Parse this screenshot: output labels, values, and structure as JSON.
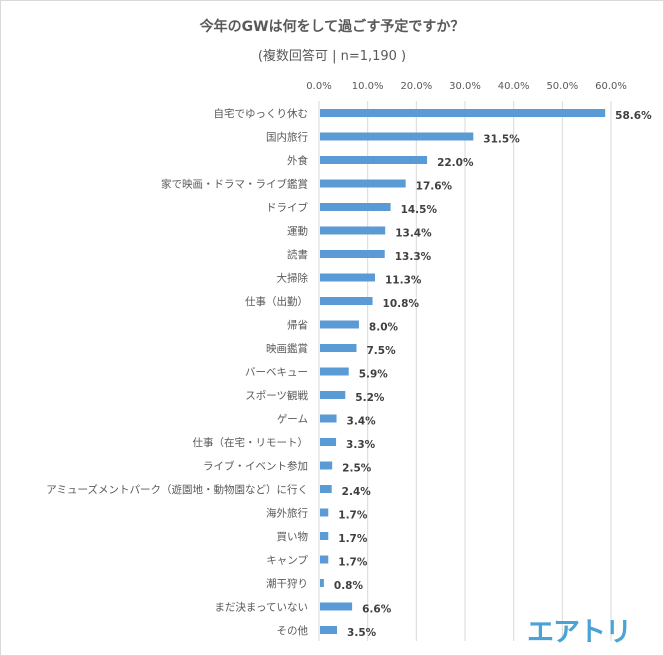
{
  "logo_text": "エアトリ",
  "chart_data": {
    "type": "bar",
    "orientation": "horizontal",
    "title": "今年のGWは何をして過ごす予定ですか？",
    "subtitle": "(複数回答可 | n=1,190 )",
    "xlabel": "",
    "ylabel": "",
    "xlim": [
      0,
      60
    ],
    "x_ticks": [
      "0.0%",
      "10.0%",
      "20.0%",
      "30.0%",
      "40.0%",
      "50.0%",
      "60.0%"
    ],
    "tick_values": [
      0,
      10,
      20,
      30,
      40,
      50,
      60
    ],
    "grid": true,
    "bar_color": "#5b9bd5",
    "categories": [
      "自宅でゆっくり休む",
      "国内旅行",
      "外食",
      "家で映画・ドラマ・ライブ鑑賞",
      "ドライブ",
      "運動",
      "読書",
      "大掃除",
      "仕事（出勤）",
      "帰省",
      "映画鑑賞",
      "バーベキュー",
      "スポーツ観戦",
      "ゲーム",
      "仕事（在宅・リモート）",
      "ライブ・イベント参加",
      "アミューズメントパーク（遊園地・動物園など）に行く",
      "海外旅行",
      "買い物",
      "キャンプ",
      "潮干狩り",
      "まだ決まっていない",
      "その他"
    ],
    "values": [
      58.6,
      31.5,
      22.0,
      17.6,
      14.5,
      13.4,
      13.3,
      11.3,
      10.8,
      8.0,
      7.5,
      5.9,
      5.2,
      3.4,
      3.3,
      2.5,
      2.4,
      1.7,
      1.7,
      1.7,
      0.8,
      6.6,
      3.5
    ],
    "value_labels": [
      "58.6%",
      "31.5%",
      "22.0%",
      "17.6%",
      "14.5%",
      "13.4%",
      "13.3%",
      "11.3%",
      "10.8%",
      "8.0%",
      "7.5%",
      "5.9%",
      "5.2%",
      "3.4%",
      "3.3%",
      "2.5%",
      "2.4%",
      "1.7%",
      "1.7%",
      "1.7%",
      "0.8%",
      "6.6%",
      "3.5%"
    ]
  }
}
